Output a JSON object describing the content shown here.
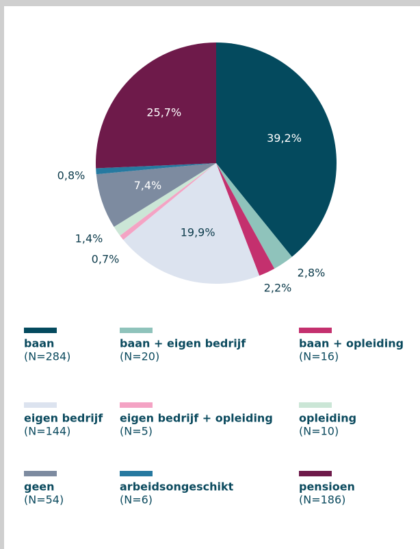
{
  "chart_data": {
    "type": "pie",
    "categories": [
      "baan",
      "baan + eigen bedrijf",
      "baan + opleiding",
      "eigen bedrijf",
      "eigen bedrijf + opleiding",
      "opleiding",
      "geen",
      "arbeidsongeschikt",
      "pensioen"
    ],
    "values": [
      39.2,
      2.8,
      2.2,
      19.9,
      0.7,
      1.4,
      7.4,
      0.8,
      25.7
    ],
    "value_labels": [
      "39,2%",
      "2,8%",
      "2,2%",
      "19,9%",
      "0,7%",
      "1,4%",
      "7,4%",
      "0,8%",
      "25,7%"
    ],
    "colors": [
      "#044a5e",
      "#8fc3bb",
      "#c4306e",
      "#dce3ef",
      "#f4a3c4",
      "#cbe6d6",
      "#7d8ba0",
      "#2679a0",
      "#6e1a4a"
    ],
    "legend_notes": [
      "(N=284)",
      "(N=20)",
      "(N=16)",
      "(N=144)",
      "(N=5)",
      "(N=10)",
      "(N=54)",
      "(N=6)",
      "(N=186)"
    ]
  }
}
